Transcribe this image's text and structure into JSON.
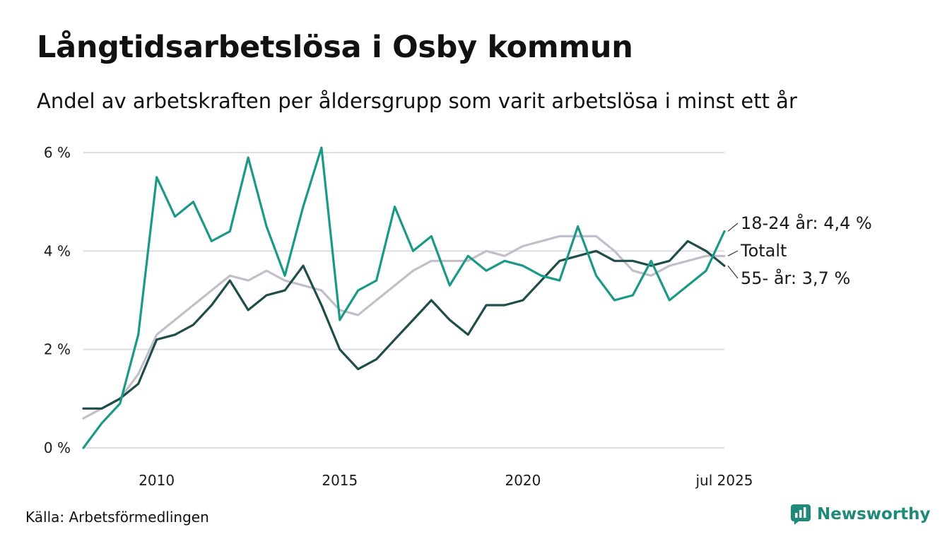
{
  "title": "Långtidsarbetslösa i Osby kommun",
  "subtitle": "Andel av arbetskraften per åldersgrupp som varit arbetslösa i minst ett år",
  "source": "Källa: Arbetsförmedlingen",
  "brand": {
    "name": "Newsworthy",
    "icon": "newsworthy-logo-icon",
    "color": "#1f8a7a"
  },
  "chart_data": {
    "type": "line",
    "x_unit": "decimal year",
    "xlim": [
      2008.0,
      2025.5
    ],
    "ylim": [
      0,
      6.2
    ],
    "y_ticks": [
      {
        "value": 0,
        "label": "0 %"
      },
      {
        "value": 2,
        "label": "2 %"
      },
      {
        "value": 4,
        "label": "4 %"
      },
      {
        "value": 6,
        "label": "6 %"
      }
    ],
    "x_ticks": [
      {
        "value": 2010,
        "label": "2010"
      },
      {
        "value": 2015,
        "label": "2015"
      },
      {
        "value": 2020,
        "label": "2020"
      },
      {
        "value": 2025.5,
        "label": "jul 2025"
      }
    ],
    "grid": "horizontal",
    "series": [
      {
        "name": "Totalt",
        "end_label": "Totalt",
        "color": "#c3bfca",
        "x": [
          2008.0,
          2008.5,
          2009.0,
          2009.5,
          2010.0,
          2010.5,
          2011.0,
          2011.5,
          2012.0,
          2012.5,
          2013.0,
          2013.5,
          2014.0,
          2014.5,
          2015.0,
          2015.5,
          2016.0,
          2016.5,
          2017.0,
          2017.5,
          2018.0,
          2018.5,
          2019.0,
          2019.5,
          2020.0,
          2020.5,
          2021.0,
          2021.5,
          2022.0,
          2022.5,
          2023.0,
          2023.5,
          2024.0,
          2024.5,
          2025.0,
          2025.5
        ],
        "y": [
          0.6,
          0.8,
          1.0,
          1.5,
          2.3,
          2.6,
          2.9,
          3.2,
          3.5,
          3.4,
          3.6,
          3.4,
          3.3,
          3.2,
          2.8,
          2.7,
          3.0,
          3.3,
          3.6,
          3.8,
          3.8,
          3.8,
          4.0,
          3.9,
          4.1,
          4.2,
          4.3,
          4.3,
          4.3,
          4.0,
          3.6,
          3.5,
          3.7,
          3.8,
          3.9,
          3.9
        ]
      },
      {
        "name": "55- år",
        "end_label": "55- år: 3,7 %",
        "color": "#1f4e4a",
        "x": [
          2008.0,
          2008.5,
          2009.0,
          2009.5,
          2010.0,
          2010.5,
          2011.0,
          2011.5,
          2012.0,
          2012.5,
          2013.0,
          2013.5,
          2014.0,
          2014.5,
          2015.0,
          2015.5,
          2016.0,
          2016.5,
          2017.0,
          2017.5,
          2018.0,
          2018.5,
          2019.0,
          2019.5,
          2020.0,
          2020.5,
          2021.0,
          2021.5,
          2022.0,
          2022.5,
          2023.0,
          2023.5,
          2024.0,
          2024.5,
          2025.0,
          2025.5
        ],
        "y": [
          0.8,
          0.8,
          1.0,
          1.3,
          2.2,
          2.3,
          2.5,
          2.9,
          3.4,
          2.8,
          3.1,
          3.2,
          3.7,
          2.9,
          2.0,
          1.6,
          1.8,
          2.2,
          2.6,
          3.0,
          2.6,
          2.3,
          2.9,
          2.9,
          3.0,
          3.4,
          3.8,
          3.9,
          4.0,
          3.8,
          3.8,
          3.7,
          3.8,
          4.2,
          4.0,
          3.7
        ]
      },
      {
        "name": "18-24 år",
        "end_label": "18-24 år: 4,4 %",
        "color": "#1a9987",
        "x": [
          2008.0,
          2008.5,
          2009.0,
          2009.5,
          2010.0,
          2010.5,
          2011.0,
          2011.5,
          2012.0,
          2012.5,
          2013.0,
          2013.5,
          2014.0,
          2014.5,
          2015.0,
          2015.5,
          2016.0,
          2016.5,
          2017.0,
          2017.5,
          2018.0,
          2018.5,
          2019.0,
          2019.5,
          2020.0,
          2020.5,
          2021.0,
          2021.5,
          2022.0,
          2022.5,
          2023.0,
          2023.5,
          2024.0,
          2024.5,
          2025.0,
          2025.5
        ],
        "y": [
          0.0,
          0.5,
          0.9,
          2.3,
          5.5,
          4.7,
          5.0,
          4.2,
          4.4,
          5.9,
          4.5,
          3.5,
          4.9,
          6.1,
          2.6,
          3.2,
          3.4,
          4.9,
          4.0,
          4.3,
          3.3,
          3.9,
          3.6,
          3.8,
          3.7,
          3.5,
          3.4,
          4.5,
          3.5,
          3.0,
          3.1,
          3.8,
          3.0,
          3.3,
          3.6,
          4.4
        ]
      }
    ]
  }
}
